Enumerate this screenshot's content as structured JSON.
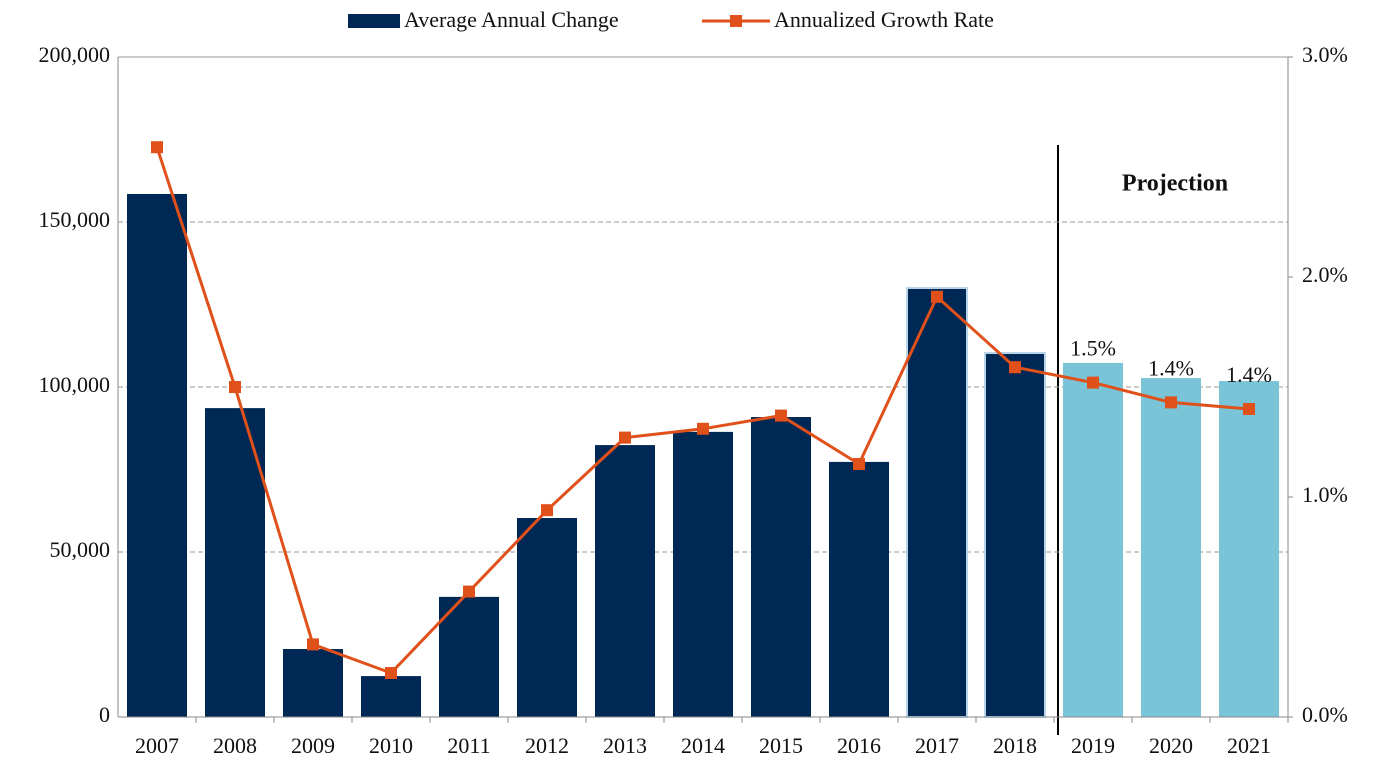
{
  "chart_data": {
    "type": "bar",
    "categories": [
      "2007",
      "2008",
      "2009",
      "2010",
      "2011",
      "2012",
      "2013",
      "2014",
      "2015",
      "2016",
      "2017",
      "2018",
      "2019",
      "2020",
      "2021"
    ],
    "series": [
      {
        "name": "Average Annual Change",
        "type": "bar",
        "axis": "y",
        "colors": [
          "#002855",
          "#002855",
          "#002855",
          "#002855",
          "#002855",
          "#002855",
          "#002855",
          "#002855",
          "#002855",
          "#002855",
          "#002855",
          "#002855",
          "#7ac4d8",
          "#7ac4d8",
          "#7ac4d8"
        ],
        "values": [
          158500,
          93600,
          20600,
          12400,
          36400,
          60300,
          82400,
          86400,
          90900,
          77300,
          130000,
          110300,
          107300,
          102700,
          101800
        ]
      },
      {
        "name": "Annualized Growth Rate",
        "type": "line",
        "axis": "y2",
        "color": "#e0501a",
        "values": [
          2.59,
          1.5,
          0.33,
          0.2,
          0.57,
          0.94,
          1.27,
          1.31,
          1.37,
          1.15,
          1.91,
          1.59,
          1.52,
          1.43,
          1.4
        ],
        "value_labels": [
          null,
          null,
          null,
          null,
          null,
          null,
          null,
          null,
          null,
          null,
          null,
          null,
          "1.5%",
          "1.4%",
          "1.4%"
        ]
      }
    ],
    "ylim": [
      0,
      200000
    ],
    "yticks": [
      0,
      {
        "value": 50000,
        "label": "50,000"
      },
      {
        "value": 100000,
        "label": "100,000"
      },
      {
        "value": 150000,
        "label": "150,000"
      },
      {
        "value": 200000,
        "label": "200,000"
      }
    ],
    "y2lim": [
      0,
      3
    ],
    "y2ticks": [
      {
        "value": 0,
        "label": "0.0%"
      },
      {
        "value": 1,
        "label": "1.0%"
      },
      {
        "value": 2,
        "label": "2.0%"
      },
      {
        "value": 3,
        "label": "3.0%"
      }
    ],
    "grid": true,
    "legend": "top",
    "annotations": [
      "Projection"
    ]
  }
}
